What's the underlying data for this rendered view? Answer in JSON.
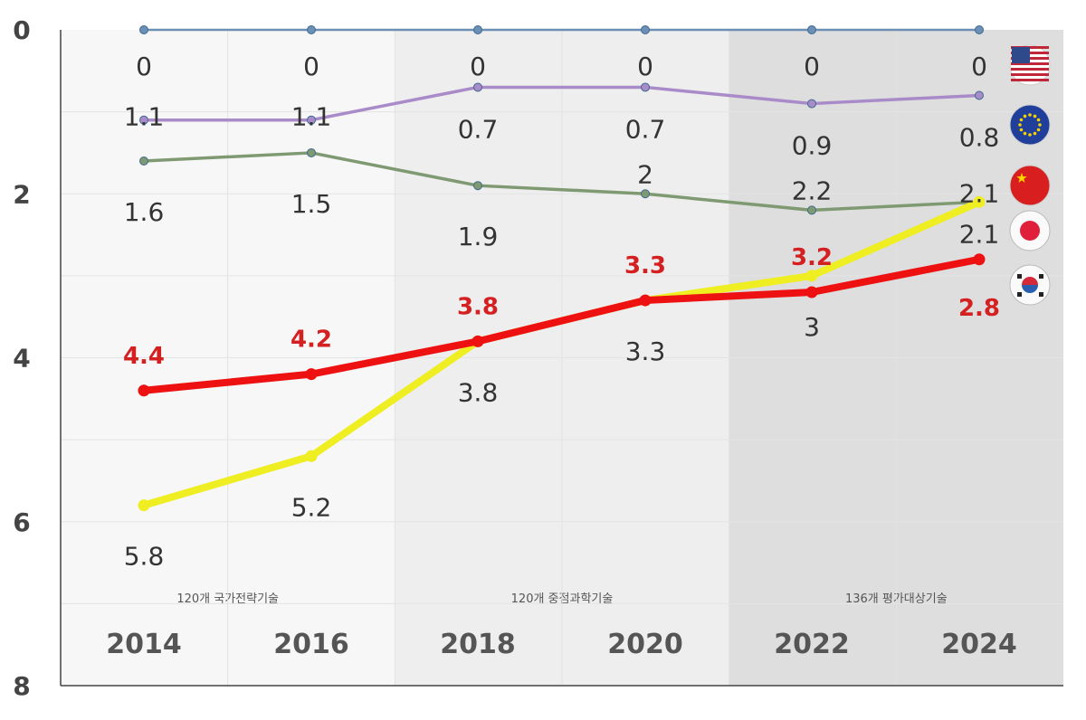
{
  "chart_data": {
    "type": "line",
    "x": [
      "2014",
      "2016",
      "2018",
      "2020",
      "2022",
      "2024"
    ],
    "y_axis": {
      "reversed": true,
      "ylim": [
        0,
        8
      ],
      "ticks": [
        "0",
        "2",
        "4",
        "6",
        "8"
      ]
    },
    "grid": true,
    "period_labels": [
      "120개 국가전략기술",
      "120개 중점과학기술",
      "136개 평가대상기술"
    ],
    "period_shading": [
      "#f7f7f7",
      "#eeeeee",
      "#dedede"
    ],
    "legend": "right, flag icons",
    "series": [
      {
        "flag": "us-flag-icon",
        "color": "#6b8fb5",
        "values": [
          0,
          0,
          0,
          0,
          0,
          0
        ]
      },
      {
        "flag": "eu-flag-icon",
        "color": "#a98bc9",
        "values": [
          1.1,
          1.1,
          0.7,
          0.7,
          0.9,
          0.8
        ]
      },
      {
        "flag": "china-flag-icon",
        "color": "#7f9a72",
        "values": [
          1.6,
          1.5,
          1.9,
          2,
          2.2,
          2.1
        ]
      },
      {
        "flag": "japan-flag-icon",
        "color": "#eeee22",
        "values": [
          5.8,
          5.2,
          3.8,
          3.3,
          3,
          2.1
        ]
      },
      {
        "flag": "korea-flag-icon",
        "color": "#ee1111",
        "label_color": "#d42020",
        "values": [
          4.4,
          4.2,
          3.8,
          3.3,
          3.2,
          2.8
        ]
      }
    ]
  }
}
